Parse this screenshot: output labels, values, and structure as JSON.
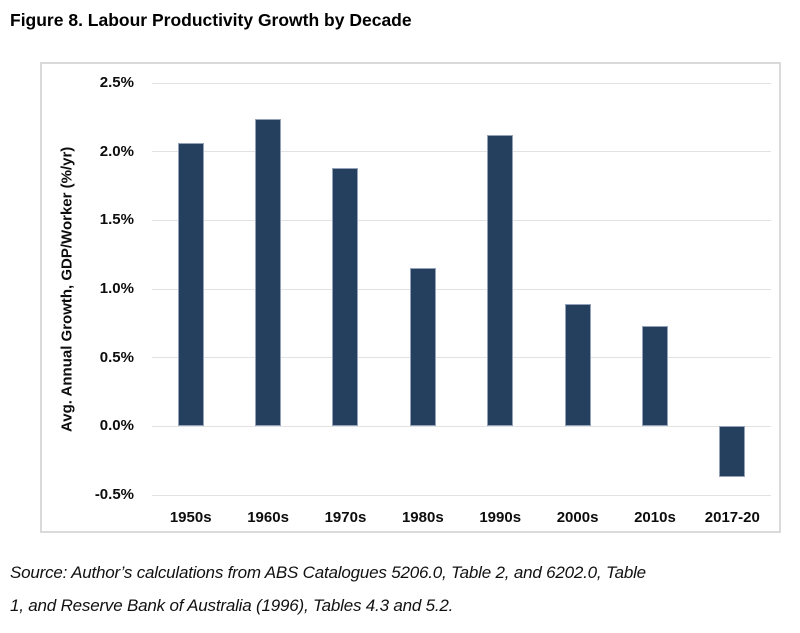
{
  "page": {
    "title": "Figure 8. Labour Productivity Growth by Decade",
    "source_lines": [
      "Source: Author’s calculations from ABS Catalogues 5206.0, Table 2, and 6202.0, Table",
      "1, and Reserve Bank of Australia (1996), Tables 4.3 and 5.2."
    ]
  },
  "chart_data": {
    "type": "bar",
    "title": "Figure 8. Labour Productivity Growth by Decade",
    "categories": [
      "1950s",
      "1960s",
      "1970s",
      "1980s",
      "1990s",
      "2000s",
      "2010s",
      "2017-20"
    ],
    "values": [
      2.06,
      2.24,
      1.88,
      1.15,
      2.12,
      0.89,
      0.73,
      -0.37
    ],
    "xlabel": "",
    "ylabel": "Avg. Annual Growth, GDP/Worker (%/yr)",
    "ylim": [
      -0.5,
      2.5
    ],
    "yticks": [
      2.5,
      2.0,
      1.5,
      1.0,
      0.5,
      0.0,
      -0.5
    ],
    "ytick_labels": [
      "2.5%",
      "2.0%",
      "1.5%",
      "1.0%",
      "0.5%",
      "0.0%",
      "-0.5%"
    ],
    "grid": true,
    "legend": false,
    "colors": {
      "bar": "#253F5E",
      "bar_border": "#93A2B9",
      "gridline": "#E2E2E2",
      "frame_border": "#DADADA",
      "text": "#0D0D0D"
    }
  }
}
